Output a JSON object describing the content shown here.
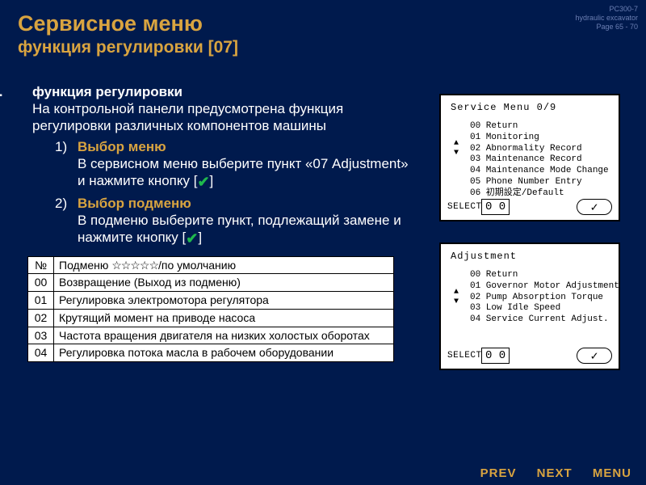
{
  "meta": {
    "model": "PC300-7",
    "product": "hydraulic excavator",
    "page": "Page 65 - 70"
  },
  "title": {
    "line1": "Сервисное меню",
    "line2": "функция регулировки [07]"
  },
  "section": {
    "roman": "I.",
    "heading": "функция регулировки",
    "intro": "На контрольной панели предусмотрена функция регулировки различных компонентов машины",
    "steps": [
      {
        "title": "Выбор меню",
        "body_a": "В сервисном меню выберите пункт «07 Adjustment» и нажмите кнопку [",
        "body_b": "]"
      },
      {
        "title": "Выбор подменю",
        "body_a": "В подменю выберите пункт, подлежащий замене и нажмите кнопку [",
        "body_b": "]"
      }
    ]
  },
  "table": {
    "col_num": "№",
    "col_desc_a": "Подменю ",
    "col_desc_stars": "☆☆☆☆☆",
    "col_desc_b": "/по умолчанию",
    "rows": [
      {
        "n": "00",
        "t": "Возвращение (Выход из подменю)"
      },
      {
        "n": "01",
        "t": "Регулировка электромотора регулятора"
      },
      {
        "n": "02",
        "t": "Крутящий момент на приводе насоса"
      },
      {
        "n": "03",
        "t": "Частота вращения двигателя на низких холостых оборотах"
      },
      {
        "n": "04",
        "t": "Регулировка потока масла в рабочем оборудовании"
      }
    ]
  },
  "lcd1": {
    "title": "Service  Menu   0/9",
    "items": [
      "00  Return",
      "01  Monitoring",
      "02  Abnormality Record",
      "03  Maintenance Record",
      "04  Maintenance Mode Change",
      "05  Phone Number Entry",
      "06  初期設定/Default"
    ],
    "select": "SELECT",
    "digits": "0 0"
  },
  "lcd2": {
    "title": "Adjustment",
    "items": [
      "00  Return",
      "01  Governor Motor Adjustment",
      "02  Pump Absorption Torque",
      "03  Low Idle Speed",
      "04  Service Current Adjust."
    ],
    "select": "SELECT",
    "digits": "0 0"
  },
  "footer": {
    "prev": "PREV",
    "next": "NEXT",
    "menu": "MENU"
  },
  "colors": {
    "bg": "#001a4d",
    "accent": "#d9a440",
    "check": "#1fb84d"
  }
}
